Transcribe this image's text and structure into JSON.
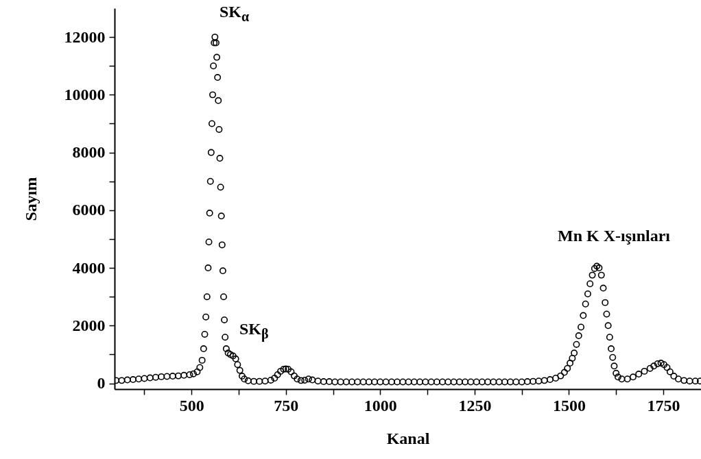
{
  "chart_data": {
    "type": "scatter",
    "xlabel": "Kanal",
    "ylabel": "Sayım",
    "marker": "circle",
    "grid": false,
    "xlim": [
      296,
      1850
    ],
    "ylim": [
      -200,
      13000
    ],
    "xticks": [
      {
        "value": 375,
        "label": null
      },
      500,
      {
        "value": 625,
        "label": null
      },
      750,
      {
        "value": 875,
        "label": null
      },
      1000,
      {
        "value": 1125,
        "label": null
      },
      1250,
      {
        "value": 1375,
        "label": null
      },
      1500,
      {
        "value": 1625,
        "label": null
      },
      1750
    ],
    "yticks": [
      0,
      {
        "value": 1000,
        "label": null
      },
      2000,
      {
        "value": 3000,
        "label": null
      },
      4000,
      {
        "value": 5000,
        "label": null
      },
      6000,
      {
        "value": 7000,
        "label": null
      },
      8000,
      {
        "value": 9000,
        "label": null
      },
      10000,
      {
        "value": 11000,
        "label": null
      },
      12000
    ],
    "annotations": [
      "SK$_{α}$",
      "SK$_{β}$",
      "Mn K X-ışınları"
    ],
    "series": [
      {
        "color": "#000000",
        "x": [
          300,
          315,
          330,
          345,
          360,
          375,
          390,
          405,
          420,
          435,
          450,
          465,
          480,
          495,
          505,
          515,
          522,
          528,
          532,
          535,
          538,
          541,
          544,
          546,
          548,
          550,
          552,
          554,
          556,
          558,
          560,
          562,
          565,
          567,
          569,
          571,
          573,
          575,
          577,
          579,
          581,
          583,
          585,
          587,
          589,
          592,
          597,
          603,
          610,
          617,
          622,
          628,
          634,
          640,
          650,
          665,
          680,
          695,
          710,
          720,
          728,
          736,
          744,
          750,
          756,
          764,
          772,
          780,
          790,
          800,
          810,
          820,
          835,
          850,
          865,
          880,
          895,
          910,
          925,
          940,
          955,
          970,
          985,
          1000,
          1015,
          1030,
          1045,
          1060,
          1075,
          1090,
          1105,
          1120,
          1135,
          1150,
          1165,
          1180,
          1195,
          1210,
          1225,
          1240,
          1255,
          1270,
          1285,
          1300,
          1315,
          1330,
          1345,
          1360,
          1375,
          1390,
          1405,
          1420,
          1435,
          1450,
          1465,
          1478,
          1488,
          1496,
          1503,
          1509,
          1514,
          1520,
          1526,
          1532,
          1538,
          1544,
          1550,
          1556,
          1562,
          1568,
          1574,
          1580,
          1586,
          1591,
          1596,
          1600,
          1604,
          1608,
          1612,
          1616,
          1620,
          1625,
          1630,
          1640,
          1655,
          1670,
          1685,
          1700,
          1715,
          1725,
          1735,
          1744,
          1752,
          1760,
          1768,
          1778,
          1790,
          1805,
          1820,
          1835,
          1848
        ],
        "values": [
          100,
          100,
          120,
          130,
          150,
          170,
          190,
          210,
          230,
          240,
          250,
          260,
          280,
          300,
          330,
          400,
          550,
          800,
          1200,
          1700,
          2300,
          3000,
          4000,
          4900,
          5900,
          7000,
          8000,
          9000,
          10000,
          11000,
          11800,
          12000,
          11800,
          11300,
          10600,
          9800,
          8800,
          7800,
          6800,
          5800,
          4800,
          3900,
          3000,
          2200,
          1600,
          1200,
          1050,
          1000,
          950,
          850,
          650,
          450,
          250,
          150,
          90,
          70,
          70,
          80,
          110,
          180,
          300,
          420,
          490,
          500,
          490,
          400,
          260,
          150,
          100,
          110,
          150,
          120,
          80,
          60,
          60,
          50,
          50,
          50,
          50,
          50,
          50,
          50,
          50,
          50,
          50,
          50,
          50,
          50,
          50,
          50,
          50,
          50,
          50,
          50,
          50,
          50,
          50,
          50,
          50,
          50,
          50,
          50,
          50,
          50,
          50,
          50,
          50,
          50,
          50,
          60,
          70,
          80,
          100,
          130,
          180,
          260,
          380,
          520,
          700,
          870,
          1050,
          1350,
          1650,
          1950,
          2350,
          2750,
          3100,
          3450,
          3750,
          3980,
          4060,
          4000,
          3750,
          3300,
          2800,
          2400,
          2000,
          1600,
          1200,
          900,
          600,
          350,
          220,
          150,
          150,
          220,
          320,
          420,
          520,
          600,
          680,
          700,
          650,
          550,
          400,
          250,
          150,
          100,
          80,
          80,
          80
        ]
      }
    ]
  }
}
